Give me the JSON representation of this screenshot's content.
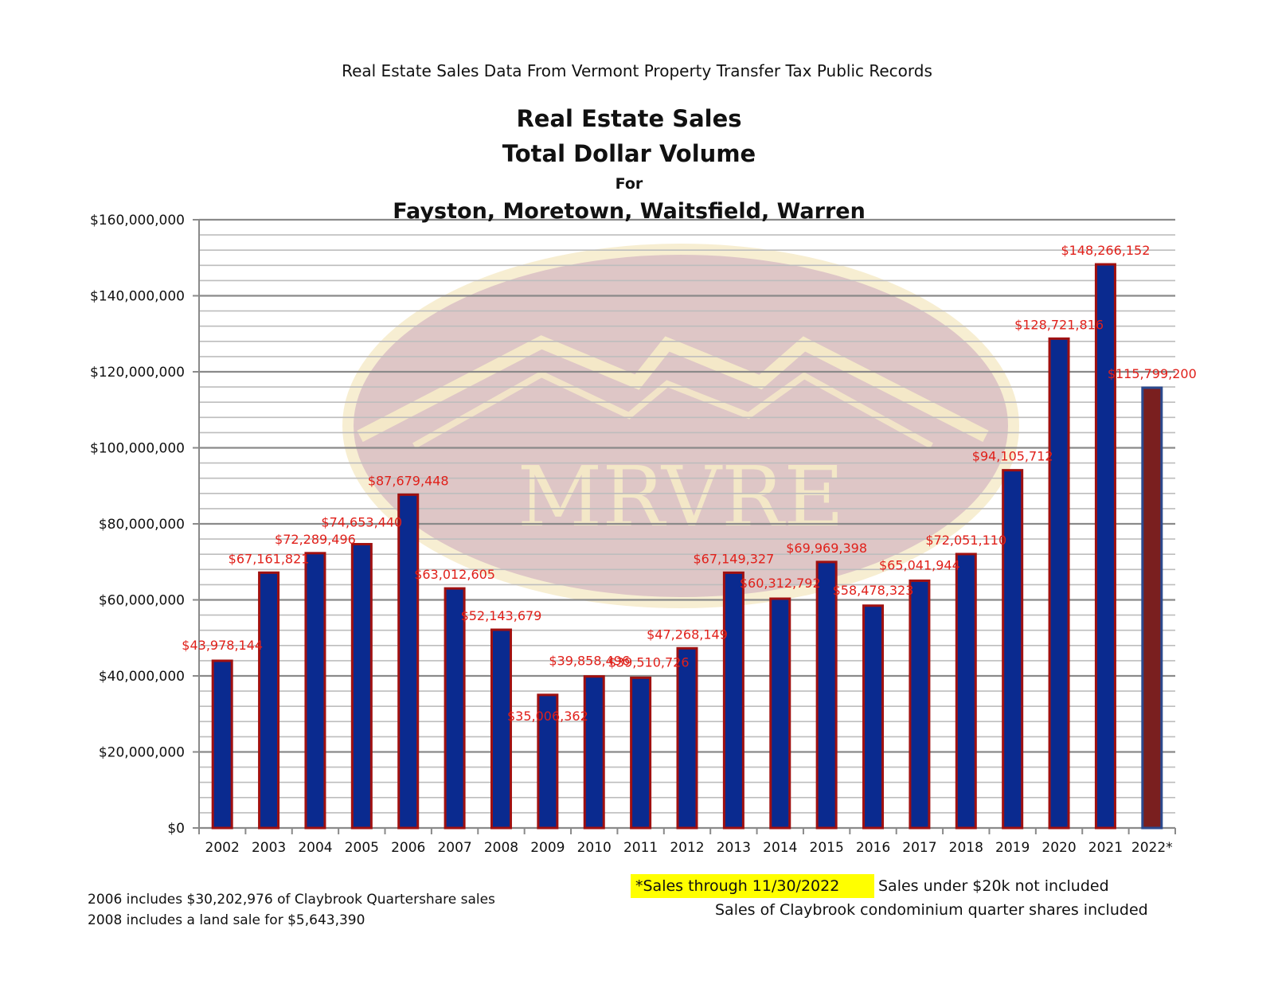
{
  "header": {
    "source": "Real Estate Sales Data From Vermont Property Transfer Tax Public Records",
    "title_line1": "Real Estate Sales",
    "title_line2": "Total Dollar Volume",
    "title_line3": "For",
    "title_line4": "Fayston, Moretown, Waitsfield, Warren"
  },
  "watermark": {
    "text": "MRVRE"
  },
  "notes": {
    "note1": "2006 includes $30,202,976 of Claybrook Quartershare sales",
    "note2": "2008 includes a land sale for $5,643,390",
    "sales_through": "*Sales through 11/30/2022",
    "note3": "Sales under $20k not included",
    "note4": "Sales of Claybrook condominium quarter shares included"
  },
  "colors": {
    "bar_fill": "#0a2a8f",
    "bar_border": "#a01010",
    "last_bar_fill": "#7a1f1f",
    "last_bar_border": "#2b4a8f",
    "label_color": "#e0201a"
  },
  "chart_data": {
    "type": "bar",
    "categories": [
      "2002",
      "2003",
      "2004",
      "2005",
      "2006",
      "2007",
      "2008",
      "2009",
      "2010",
      "2011",
      "2012",
      "2013",
      "2014",
      "2015",
      "2016",
      "2017",
      "2018",
      "2019",
      "2020",
      "2021",
      "2022*"
    ],
    "values": [
      43978144,
      67161821,
      72289496,
      74653440,
      87679448,
      63012605,
      52143679,
      35006362,
      39858496,
      39510726,
      47268149,
      67149327,
      60312792,
      69969398,
      58478323,
      65041944,
      72051110,
      94105712,
      128721816,
      148266152,
      115799200
    ],
    "data_labels": [
      "$43,978,144",
      "$67,161,821",
      "$72,289,496",
      "$74,653,440",
      "$87,679,448",
      "$63,012,605",
      "$52,143,679",
      "$35,006,362",
      "$39,858,496",
      "$39,510,726",
      "$47,268,149",
      "$67,149,327",
      "$60,312,792",
      "$69,969,398",
      "$58,478,323",
      "$65,041,944",
      "$72,051,110",
      "$94,105,712",
      "$128,721,816",
      "$148,266,152",
      "$115,799,200"
    ],
    "y_tick_labels": [
      "$0",
      "$20,000,000",
      "$40,000,000",
      "$60,000,000",
      "$80,000,000",
      "$100,000,000",
      "$120,000,000",
      "$140,000,000",
      "$160,000,000"
    ],
    "ylim": [
      0,
      160000000
    ],
    "major_tick_step": 20000000,
    "minor_tick_step": 4000000,
    "grid": true,
    "legend": "none"
  }
}
